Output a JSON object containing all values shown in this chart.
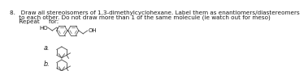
{
  "text_line1": "8.   Draw all stereoisomers of 1,3-dimethylcyclohexane. Label them as enantiomers/diastereomers",
  "text_line2": "     to each other. Do not draw more than 1 of the same molecule (ie watch out for meso)",
  "text_line3": "     Repeat     for:",
  "label_a": "a.",
  "label_b": "b.",
  "background": "#ffffff",
  "text_color": "#1a1a1a",
  "structure_color": "#555555",
  "ho_label": "HO",
  "oh_label": "OH",
  "font_size_main": 5.2,
  "font_size_label": 5.8,
  "font_size_chem": 5.0
}
